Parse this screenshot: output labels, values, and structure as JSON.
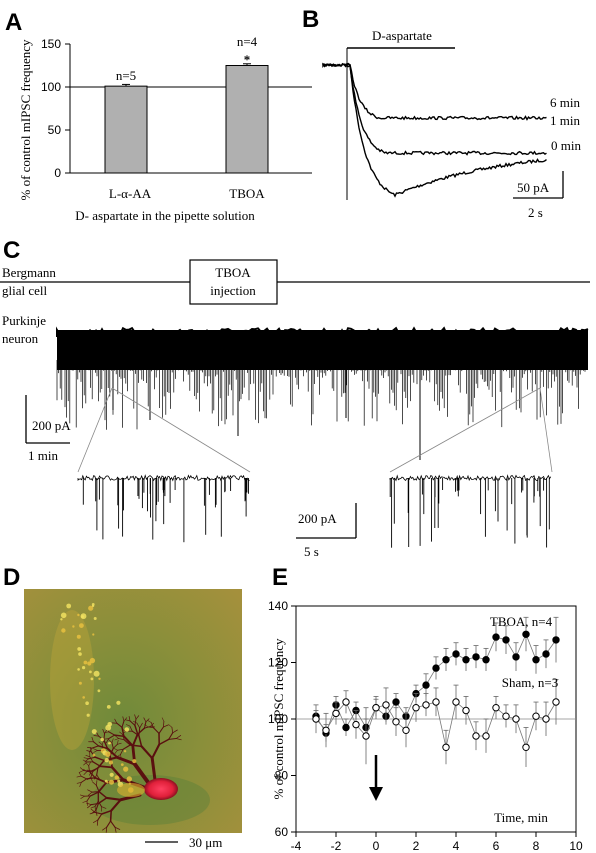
{
  "panels": {
    "A": {
      "label": "A"
    },
    "B": {
      "label": "B"
    },
    "C": {
      "label": "C"
    },
    "D": {
      "label": "D"
    },
    "E": {
      "label": "E"
    }
  },
  "chart_data": [
    {
      "panel": "A",
      "type": "bar",
      "categories": [
        "L-α-AA",
        "TBOA"
      ],
      "values": [
        101,
        125
      ],
      "errors": [
        2,
        2
      ],
      "bar_annotations": [
        "n=5",
        "n=4"
      ],
      "significance": [
        "",
        "*"
      ],
      "ylabel": "% of control mIPSC frequency",
      "xlabel": "D- aspartate in the pipette solution",
      "ylim": [
        0,
        150
      ],
      "yticks": [
        0,
        50,
        100,
        150
      ],
      "reference_line": 100,
      "bar_color": "#b0b0b0"
    },
    {
      "panel": "E",
      "type": "scatter",
      "xlabel": "Time, min",
      "ylabel": "% of control mIPSC frequency",
      "xlim": [
        -4,
        10
      ],
      "ylim": [
        60,
        140
      ],
      "xticks": [
        -4,
        -2,
        0,
        2,
        4,
        6,
        8,
        10
      ],
      "yticks": [
        60,
        80,
        100,
        120,
        140
      ],
      "reference_line": 100,
      "event_arrow_x": 0,
      "series": [
        {
          "name": "TBOA, n=4",
          "marker": "filled-circle",
          "x": [
            -3,
            -2.5,
            -2,
            -1.5,
            -1,
            -0.5,
            0,
            0.5,
            1,
            1.5,
            2,
            2.5,
            3,
            3.5,
            4,
            4.5,
            5,
            5.5,
            6,
            6.5,
            7,
            7.5,
            8,
            8.5,
            9
          ],
          "y": [
            101,
            95,
            105,
            97,
            103,
            97,
            104,
            101,
            106,
            101,
            109,
            112,
            118,
            121,
            123,
            121,
            122,
            121,
            129,
            128,
            122,
            130,
            121,
            123,
            128
          ],
          "err": [
            2,
            3,
            3,
            3,
            3,
            3,
            3,
            3,
            3,
            3,
            3,
            4,
            4,
            4,
            4,
            4,
            4,
            4,
            5,
            5,
            5,
            6,
            5,
            5,
            8
          ]
        },
        {
          "name": "Sham, n=3",
          "marker": "open-circle",
          "x": [
            -3,
            -2.5,
            -2,
            -1.5,
            -1,
            -0.5,
            0,
            0.5,
            1,
            1.5,
            2,
            2.5,
            3,
            3.5,
            4,
            4.5,
            5,
            5.5,
            6,
            6.5,
            7,
            7.5,
            8,
            8.5,
            9
          ],
          "y": [
            100,
            96,
            102,
            106,
            98,
            94,
            104,
            105,
            99,
            96,
            104,
            105,
            106,
            90,
            106,
            103,
            94,
            94,
            104,
            101,
            100,
            90,
            101,
            100,
            106
          ],
          "err": [
            5,
            6,
            4,
            4,
            5,
            10,
            4,
            6,
            5,
            6,
            5,
            4,
            5,
            6,
            6,
            5,
            5,
            6,
            4,
            4,
            5,
            7,
            5,
            6,
            8
          ]
        }
      ]
    }
  ],
  "text": {
    "a_n5": "n=5",
    "a_n4": "n=4",
    "a_star": "*",
    "a_ylabel": "% of control mIPSC frequency",
    "a_xlabel": "D- aspartate in the pipette solution",
    "a_cat1": "L-α-AA",
    "a_cat2": "TBOA",
    "b_bar": "D-aspartate",
    "b_6": "6 min",
    "b_1": "1 min",
    "b_0": "0 min",
    "b_scale_y": "50 pA",
    "b_scale_x": "2 s",
    "c_bergmann_1": "Bergmann",
    "c_bergmann_2": "glial cell",
    "c_box_1": "TBOA",
    "c_box_2": "injection",
    "c_purkinje_1": "Purkinje",
    "c_purkinje_2": "neuron",
    "c_scale_y": "200 pA",
    "c_scale_x": "1 min",
    "c_scale_y2": "200 pA",
    "c_scale_x2": "5 s",
    "d_scale": "30 μm",
    "e_ylabel": "% of control mIPSC frequency",
    "e_xlabel": "Time, min",
    "e_tboa": "TBOA, n=4",
    "e_sham": "Sham, n=3"
  },
  "colors": {
    "bar": "#b0b0b0",
    "micrograph_bg": "#8a8a3a",
    "cell_red": "#e0203a",
    "dendrite": "#5a1010"
  }
}
